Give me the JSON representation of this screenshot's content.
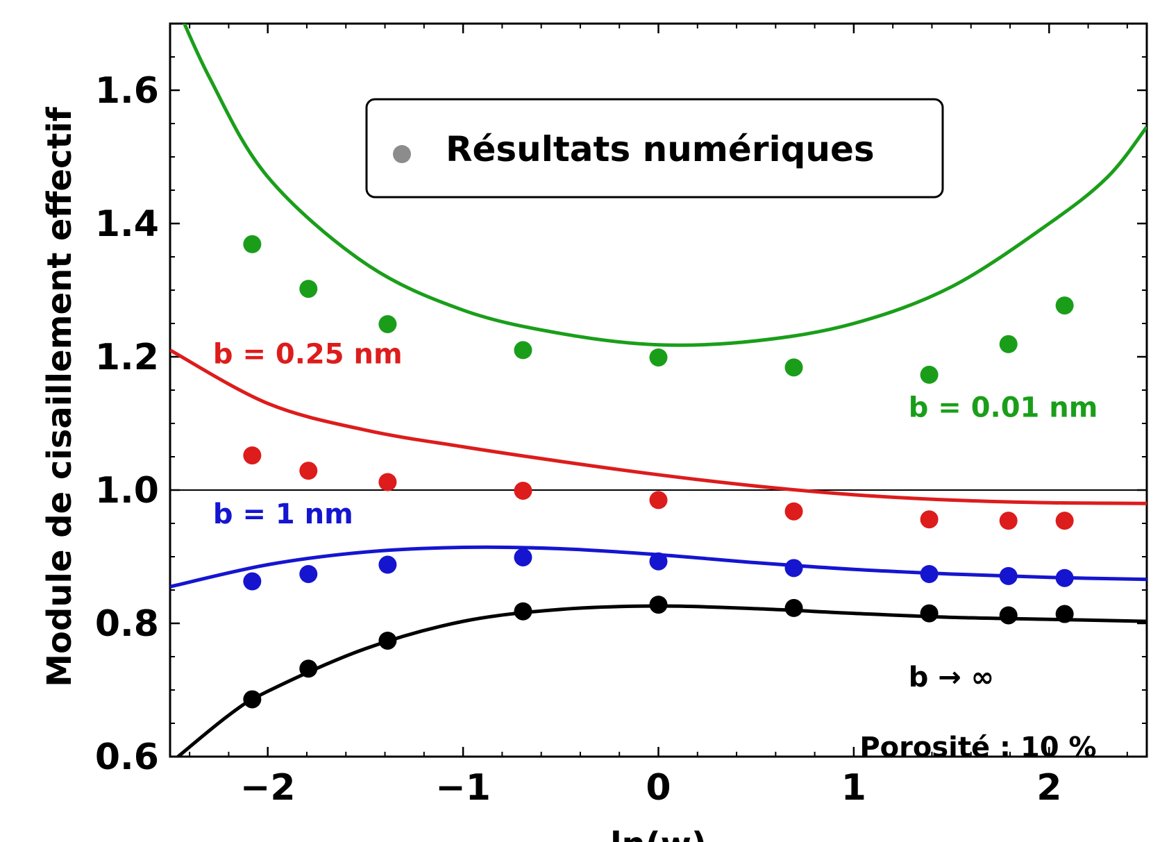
{
  "chart_data": {
    "type": "scatter",
    "xlabel": "ln(w)",
    "ylabel": "Module de cisaillement effectif",
    "xlim": [
      -2.5,
      2.5
    ],
    "ylim": [
      0.6,
      1.7
    ],
    "xticks": [
      -2,
      -1,
      0,
      1,
      2
    ],
    "xtick_labels": [
      "−2",
      "−1",
      "0",
      "1",
      "2"
    ],
    "yticks": [
      0.6,
      0.8,
      1.0,
      1.2,
      1.4,
      1.6
    ],
    "ytick_labels": [
      "0.6",
      "0.8",
      "1.0",
      "1.2",
      "1.4",
      "1.6"
    ],
    "reference_line_y": 1.0,
    "grid": false,
    "legend": {
      "placement": "top-center",
      "entries": [
        {
          "label": "Résultats numériques",
          "marker": "circle",
          "color": "#8c8c8c"
        }
      ]
    },
    "x": [
      -2.0794,
      -1.7918,
      -1.3863,
      -0.6931,
      0.0,
      0.6931,
      1.3863,
      1.7918,
      2.0794
    ],
    "series": [
      {
        "label": "b = 0.01 nm",
        "color": "#1a9e1a",
        "points_y": [
          1.369,
          1.302,
          1.249,
          1.21,
          1.199,
          1.184,
          1.173,
          1.219,
          1.277
        ],
        "curve": [
          [
            -2.5,
            1.75
          ],
          [
            -2.3,
            1.62
          ],
          [
            -2.0,
            1.47
          ],
          [
            -1.5,
            1.34
          ],
          [
            -1.0,
            1.27
          ],
          [
            -0.5,
            1.235
          ],
          [
            0.0,
            1.218
          ],
          [
            0.5,
            1.224
          ],
          [
            1.0,
            1.25
          ],
          [
            1.5,
            1.305
          ],
          [
            2.0,
            1.4
          ],
          [
            2.3,
            1.47
          ],
          [
            2.5,
            1.545
          ]
        ],
        "annotation": "b = 0.01 nm"
      },
      {
        "label": "b = 0.25 nm",
        "color": "#dd1c1c",
        "points_y": [
          1.052,
          1.029,
          1.012,
          0.999,
          0.985,
          0.968,
          0.956,
          0.954,
          0.954
        ],
        "curve": [
          [
            -2.5,
            1.21
          ],
          [
            -2.0,
            1.13
          ],
          [
            -1.5,
            1.09
          ],
          [
            -1.0,
            1.065
          ],
          [
            -0.5,
            1.043
          ],
          [
            0.0,
            1.023
          ],
          [
            0.5,
            1.006
          ],
          [
            1.0,
            0.993
          ],
          [
            1.5,
            0.985
          ],
          [
            2.0,
            0.981
          ],
          [
            2.5,
            0.98
          ]
        ],
        "annotation": "b = 0.25 nm"
      },
      {
        "label": "b = 1 nm",
        "color": "#1515d0",
        "points_y": [
          0.863,
          0.874,
          0.888,
          0.899,
          0.893,
          0.883,
          0.874,
          0.871,
          0.868
        ],
        "curve": [
          [
            -2.5,
            0.855
          ],
          [
            -2.0,
            0.888
          ],
          [
            -1.5,
            0.907
          ],
          [
            -1.0,
            0.914
          ],
          [
            -0.5,
            0.912
          ],
          [
            0.0,
            0.903
          ],
          [
            0.5,
            0.891
          ],
          [
            1.0,
            0.881
          ],
          [
            1.5,
            0.874
          ],
          [
            2.0,
            0.869
          ],
          [
            2.5,
            0.866
          ]
        ],
        "annotation": "b = 1 nm"
      },
      {
        "label": "b → ∞",
        "color": "#000000",
        "points_y": [
          0.686,
          0.732,
          0.774,
          0.818,
          0.828,
          0.823,
          0.815,
          0.812,
          0.814
        ],
        "curve": [
          [
            -2.5,
            0.59
          ],
          [
            -2.2,
            0.662
          ],
          [
            -2.0,
            0.698
          ],
          [
            -1.5,
            0.762
          ],
          [
            -1.0,
            0.803
          ],
          [
            -0.5,
            0.821
          ],
          [
            0.0,
            0.826
          ],
          [
            0.5,
            0.822
          ],
          [
            1.0,
            0.815
          ],
          [
            1.5,
            0.809
          ],
          [
            2.0,
            0.806
          ],
          [
            2.5,
            0.803
          ]
        ],
        "annotation": "b → ∞"
      }
    ],
    "annotations": [
      {
        "text": "b = 0.25 nm",
        "x": -2.28,
        "y": 1.19,
        "color": "#dd1c1c"
      },
      {
        "text": "b = 0.01 nm",
        "x": 1.28,
        "y": 1.11,
        "color": "#1a9e1a"
      },
      {
        "text": "b = 1 nm",
        "x": -2.28,
        "y": 0.95,
        "color": "#1515d0"
      },
      {
        "text": "b → ∞",
        "x": 1.28,
        "y": 0.705,
        "color": "#000000"
      },
      {
        "text": "Porosité : 10 %",
        "x": 1.03,
        "y": 0.6,
        "color": "#000000"
      }
    ]
  }
}
